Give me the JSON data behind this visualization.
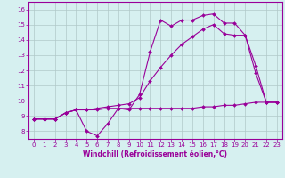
{
  "xlabel": "Windchill (Refroidissement éolien,°C)",
  "ylabel": "",
  "background_color": "#d6f0f0",
  "line_color": "#990099",
  "grid_color": "#b0c8c8",
  "xlim": [
    -0.5,
    23.5
  ],
  "ylim": [
    7.5,
    16.5
  ],
  "xticks": [
    0,
    1,
    2,
    3,
    4,
    5,
    6,
    7,
    8,
    9,
    10,
    11,
    12,
    13,
    14,
    15,
    16,
    17,
    18,
    19,
    20,
    21,
    22,
    23
  ],
  "yticks": [
    8,
    9,
    10,
    11,
    12,
    13,
    14,
    15,
    16
  ],
  "series": [
    {
      "x": [
        0,
        1,
        2,
        3,
        4,
        5,
        6,
        7,
        8,
        9,
        10,
        11,
        12,
        13,
        14,
        15,
        16,
        17,
        18,
        19,
        20,
        21,
        22,
        23
      ],
      "y": [
        8.8,
        8.8,
        8.8,
        9.2,
        9.4,
        8.0,
        7.7,
        8.5,
        9.5,
        9.4,
        10.4,
        13.2,
        15.3,
        14.9,
        15.3,
        15.3,
        15.6,
        15.7,
        15.1,
        15.1,
        14.3,
        11.8,
        9.9,
        9.9
      ]
    },
    {
      "x": [
        0,
        1,
        2,
        3,
        4,
        5,
        6,
        7,
        8,
        9,
        10,
        11,
        12,
        13,
        14,
        15,
        16,
        17,
        18,
        19,
        20,
        21,
        22,
        23
      ],
      "y": [
        8.8,
        8.8,
        8.8,
        9.2,
        9.4,
        9.4,
        9.4,
        9.5,
        9.5,
        9.5,
        9.5,
        9.5,
        9.5,
        9.5,
        9.5,
        9.5,
        9.6,
        9.6,
        9.7,
        9.7,
        9.8,
        9.9,
        9.9,
        9.9
      ]
    },
    {
      "x": [
        0,
        1,
        2,
        3,
        4,
        5,
        6,
        7,
        8,
        9,
        10,
        11,
        12,
        13,
        14,
        15,
        16,
        17,
        18,
        19,
        20,
        21,
        22,
        23
      ],
      "y": [
        8.8,
        8.8,
        8.8,
        9.2,
        9.4,
        9.4,
        9.5,
        9.6,
        9.7,
        9.8,
        10.2,
        11.3,
        12.2,
        13.0,
        13.7,
        14.2,
        14.7,
        15.0,
        14.4,
        14.3,
        14.3,
        12.3,
        9.9,
        9.9
      ]
    }
  ],
  "tick_fontsize": 5,
  "xlabel_fontsize": 5.5,
  "marker_size": 2.0,
  "line_width": 0.8
}
